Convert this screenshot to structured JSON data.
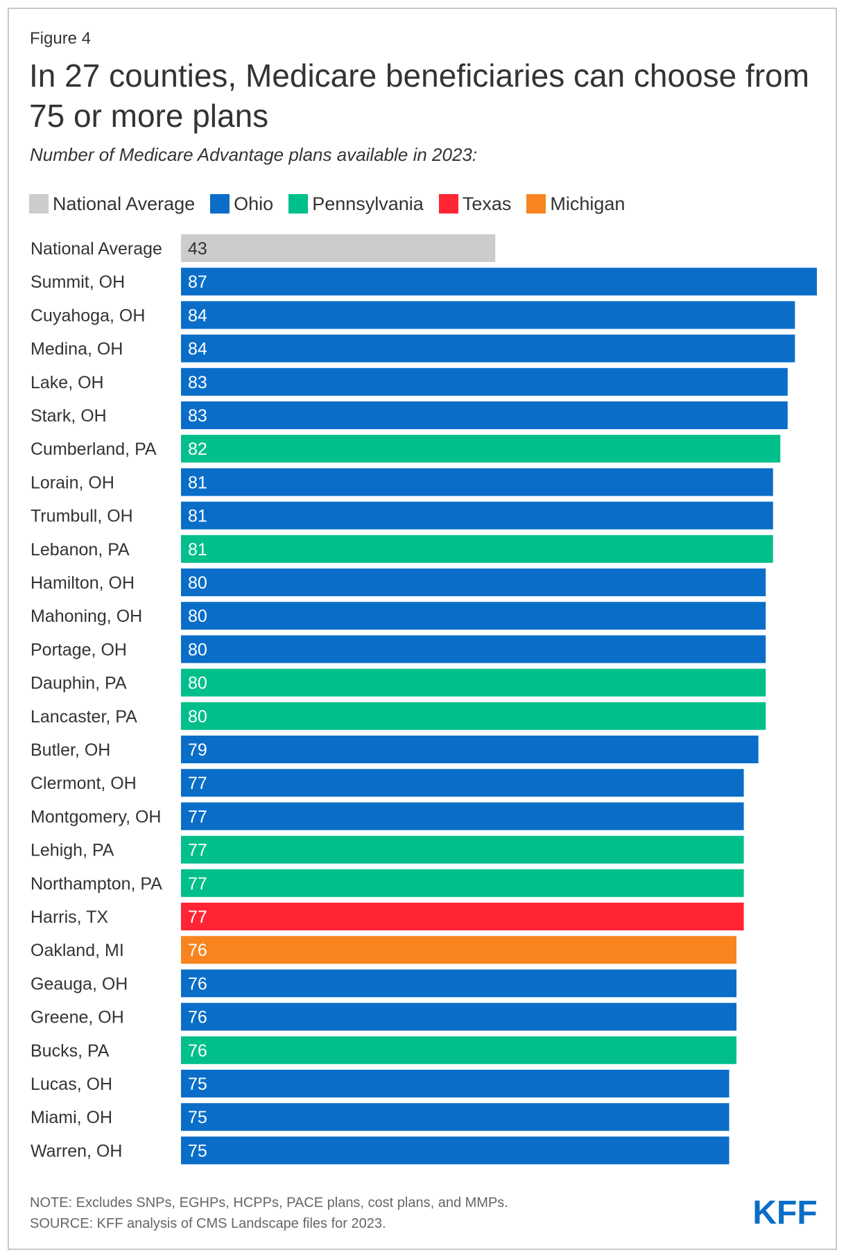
{
  "figure_label": "Figure 4",
  "title": "In 27 counties, Medicare beneficiaries can choose from 75 or more plans",
  "subtitle": "Number of Medicare Advantage plans available in 2023:",
  "legend": [
    {
      "label": "National Average",
      "color": "#cccccc"
    },
    {
      "label": "Ohio",
      "color": "#0a6ec8"
    },
    {
      "label": "Pennsylvania",
      "color": "#00bf8a"
    },
    {
      "label": "Texas",
      "color": "#ff2534"
    },
    {
      "label": "Michigan",
      "color": "#f7841e"
    }
  ],
  "chart_data": {
    "type": "bar",
    "orientation": "horizontal",
    "title": "In 27 counties, Medicare beneficiaries can choose from 75 or more plans",
    "xlabel": "",
    "ylabel": "",
    "xlim": [
      0,
      87
    ],
    "grid": false,
    "categories": [
      "National Average",
      "Summit, OH",
      "Cuyahoga, OH",
      "Medina, OH",
      "Lake, OH",
      "Stark, OH",
      "Cumberland, PA",
      "Lorain, OH",
      "Trumbull, OH",
      "Lebanon, PA",
      "Hamilton, OH",
      "Mahoning, OH",
      "Portage, OH",
      "Dauphin, PA",
      "Lancaster, PA",
      "Butler, OH",
      "Clermont, OH",
      "Montgomery, OH",
      "Lehigh, PA",
      "Northampton, PA",
      "Harris, TX",
      "Oakland, MI",
      "Geauga, OH",
      "Greene, OH",
      "Bucks, PA",
      "Lucas, OH",
      "Miami, OH",
      "Warren, OH"
    ],
    "values": [
      43,
      87,
      84,
      84,
      83,
      83,
      82,
      81,
      81,
      81,
      80,
      80,
      80,
      80,
      80,
      79,
      77,
      77,
      77,
      77,
      77,
      76,
      76,
      76,
      76,
      75,
      75,
      75
    ],
    "groups": [
      "National Average",
      "Ohio",
      "Ohio",
      "Ohio",
      "Ohio",
      "Ohio",
      "Pennsylvania",
      "Ohio",
      "Ohio",
      "Pennsylvania",
      "Ohio",
      "Ohio",
      "Ohio",
      "Pennsylvania",
      "Pennsylvania",
      "Ohio",
      "Ohio",
      "Ohio",
      "Pennsylvania",
      "Pennsylvania",
      "Texas",
      "Michigan",
      "Ohio",
      "Ohio",
      "Pennsylvania",
      "Ohio",
      "Ohio",
      "Ohio"
    ]
  },
  "footer": {
    "note": "NOTE: Excludes SNPs, EGHPs, HCPPs, PACE plans, cost plans, and MMPs.",
    "source": "SOURCE: KFF analysis of CMS Landscape files for 2023.",
    "logo_text": "KFF",
    "logo_color": "#0a6ec8"
  }
}
